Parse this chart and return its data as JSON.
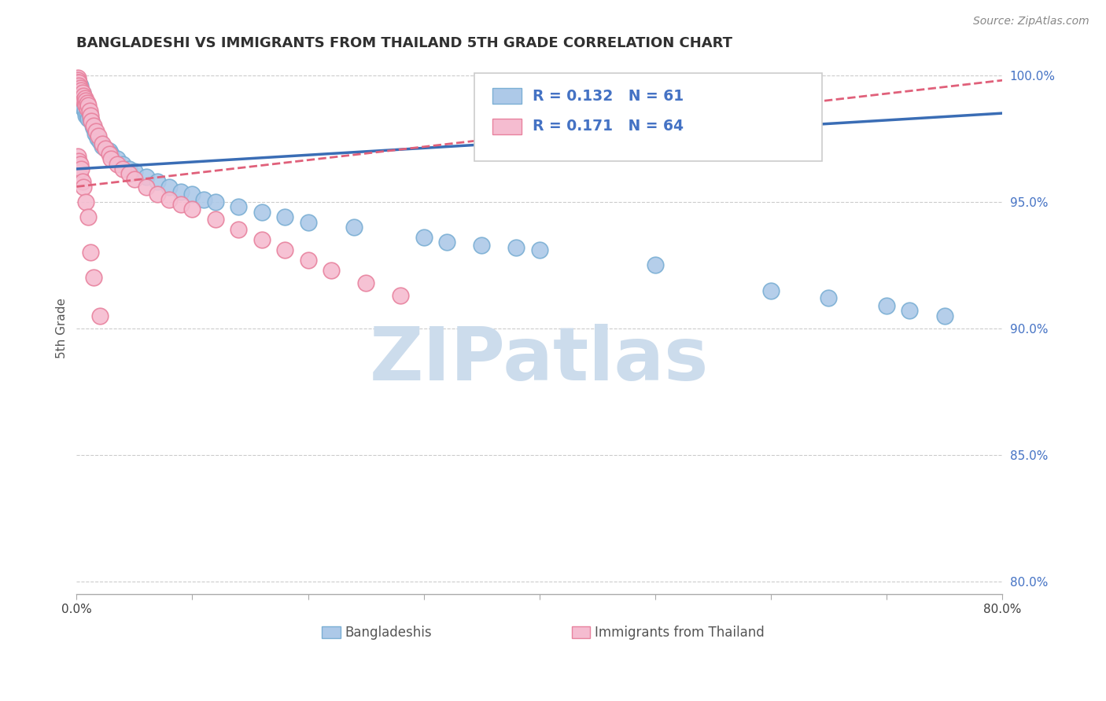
{
  "title": "BANGLADESHI VS IMMIGRANTS FROM THAILAND 5TH GRADE CORRELATION CHART",
  "source_text": "Source: ZipAtlas.com",
  "ylabel": "5th Grade",
  "x_min": 0.0,
  "x_max": 0.8,
  "y_min": 0.795,
  "y_max": 1.005,
  "x_ticks": [
    0.0,
    0.1,
    0.2,
    0.3,
    0.4,
    0.5,
    0.6,
    0.7,
    0.8
  ],
  "x_tick_labels": [
    "0.0%",
    "",
    "",
    "",
    "",
    "",
    "",
    "",
    "80.0%"
  ],
  "y_ticks": [
    0.8,
    0.85,
    0.9,
    0.95,
    1.0
  ],
  "y_tick_labels": [
    "80.0%",
    "85.0%",
    "90.0%",
    "95.0%",
    "100.0%"
  ],
  "blue_color": "#adc9e8",
  "blue_edge_color": "#7bafd4",
  "pink_color": "#f5bcd0",
  "pink_edge_color": "#e8829e",
  "blue_line_color": "#3a6db5",
  "pink_line_color": "#e0607a",
  "R_blue": 0.132,
  "N_blue": 61,
  "R_pink": 0.171,
  "N_pink": 64,
  "legend_R_N_color": "#4472c4",
  "watermark_color": "#ccdcec",
  "bg_color": "#ffffff",
  "grid_color": "#cccccc",
  "title_color": "#303030",
  "axis_label_color": "#555555",
  "legend_label_blue": "Bangladeshis",
  "legend_label_pink": "Immigrants from Thailand",
  "blue_trend": [
    0.963,
    0.985
  ],
  "pink_trend": [
    0.956,
    0.998
  ],
  "blue_scatter_x": [
    0.001,
    0.001,
    0.001,
    0.002,
    0.002,
    0.002,
    0.003,
    0.003,
    0.004,
    0.004,
    0.005,
    0.005,
    0.006,
    0.006,
    0.007,
    0.007,
    0.008,
    0.008,
    0.009,
    0.009,
    0.01,
    0.01,
    0.011,
    0.012,
    0.013,
    0.014,
    0.015,
    0.016,
    0.018,
    0.02,
    0.022,
    0.025,
    0.028,
    0.03,
    0.035,
    0.04,
    0.045,
    0.05,
    0.06,
    0.07,
    0.08,
    0.09,
    0.1,
    0.11,
    0.12,
    0.14,
    0.16,
    0.18,
    0.2,
    0.24,
    0.3,
    0.32,
    0.35,
    0.38,
    0.4,
    0.5,
    0.6,
    0.65,
    0.7,
    0.72,
    0.75
  ],
  "blue_scatter_y": [
    0.998,
    0.995,
    0.992,
    0.997,
    0.994,
    0.99,
    0.996,
    0.992,
    0.994,
    0.99,
    0.993,
    0.988,
    0.991,
    0.987,
    0.99,
    0.986,
    0.989,
    0.984,
    0.988,
    0.984,
    0.987,
    0.983,
    0.985,
    0.983,
    0.982,
    0.98,
    0.979,
    0.977,
    0.975,
    0.974,
    0.972,
    0.971,
    0.97,
    0.969,
    0.967,
    0.965,
    0.963,
    0.962,
    0.96,
    0.958,
    0.956,
    0.954,
    0.953,
    0.951,
    0.95,
    0.948,
    0.946,
    0.944,
    0.942,
    0.94,
    0.936,
    0.934,
    0.933,
    0.932,
    0.931,
    0.925,
    0.915,
    0.912,
    0.909,
    0.907,
    0.905
  ],
  "pink_scatter_x": [
    0.001,
    0.001,
    0.001,
    0.001,
    0.001,
    0.002,
    0.002,
    0.002,
    0.003,
    0.003,
    0.004,
    0.004,
    0.005,
    0.005,
    0.006,
    0.006,
    0.007,
    0.007,
    0.008,
    0.008,
    0.009,
    0.009,
    0.01,
    0.011,
    0.012,
    0.013,
    0.015,
    0.017,
    0.019,
    0.022,
    0.025,
    0.028,
    0.03,
    0.035,
    0.04,
    0.045,
    0.05,
    0.06,
    0.07,
    0.08,
    0.09,
    0.1,
    0.12,
    0.14,
    0.16,
    0.18,
    0.2,
    0.22,
    0.25,
    0.28,
    0.001,
    0.001,
    0.002,
    0.002,
    0.003,
    0.003,
    0.004,
    0.005,
    0.006,
    0.008,
    0.01,
    0.012,
    0.015,
    0.02
  ],
  "pink_scatter_y": [
    0.999,
    0.998,
    0.997,
    0.996,
    0.995,
    0.997,
    0.996,
    0.994,
    0.995,
    0.993,
    0.994,
    0.992,
    0.993,
    0.991,
    0.992,
    0.99,
    0.991,
    0.989,
    0.99,
    0.988,
    0.989,
    0.987,
    0.988,
    0.986,
    0.984,
    0.982,
    0.98,
    0.978,
    0.976,
    0.973,
    0.971,
    0.969,
    0.967,
    0.965,
    0.963,
    0.961,
    0.959,
    0.956,
    0.953,
    0.951,
    0.949,
    0.947,
    0.943,
    0.939,
    0.935,
    0.931,
    0.927,
    0.923,
    0.918,
    0.913,
    0.968,
    0.964,
    0.966,
    0.962,
    0.965,
    0.96,
    0.963,
    0.958,
    0.956,
    0.95,
    0.944,
    0.93,
    0.92,
    0.905
  ]
}
